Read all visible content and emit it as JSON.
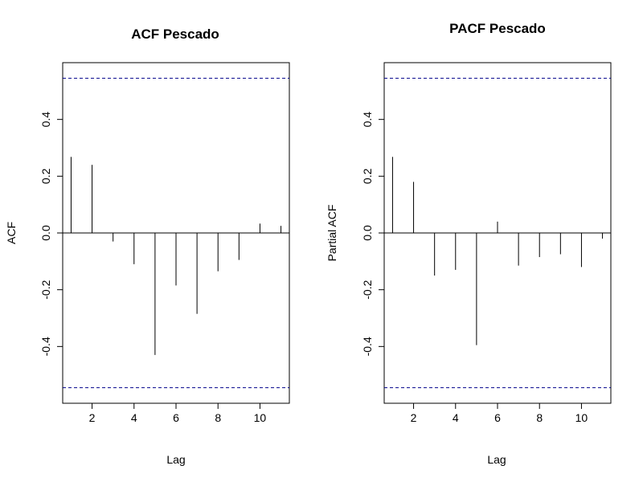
{
  "chart_data": [
    {
      "type": "bar",
      "title": "ACF Pescado",
      "xlabel": "Lag",
      "ylabel": "ACF",
      "x": [
        1,
        2,
        3,
        4,
        5,
        6,
        7,
        8,
        9,
        10,
        11
      ],
      "values": [
        0.268,
        0.24,
        -0.03,
        -0.11,
        -0.43,
        -0.185,
        -0.285,
        -0.135,
        -0.095,
        0.033,
        0.025
      ],
      "xlim": [
        0.6,
        11.4
      ],
      "ylim": [
        -0.6,
        0.6
      ],
      "xticks": [
        2,
        4,
        6,
        8,
        10
      ],
      "yticks": [
        -0.4,
        -0.2,
        0.0,
        0.2,
        0.4
      ],
      "xtick_labels": [
        "2",
        "4",
        "6",
        "8",
        "10"
      ],
      "ytick_labels": [
        "-0.4",
        "-0.2",
        "0.0",
        "0.2",
        "0.4"
      ],
      "confidence_bounds": [
        0.545,
        -0.545
      ],
      "bound_color": "#00008B",
      "grid": false
    },
    {
      "type": "bar",
      "title": "PACF Pescado",
      "xlabel": "Lag",
      "ylabel": "Partial ACF",
      "x": [
        1,
        2,
        3,
        4,
        5,
        6,
        7,
        8,
        9,
        10,
        11
      ],
      "values": [
        0.268,
        0.18,
        -0.15,
        -0.13,
        -0.395,
        0.04,
        -0.115,
        -0.085,
        -0.075,
        -0.12,
        -0.02
      ],
      "xlim": [
        0.6,
        11.4
      ],
      "ylim": [
        -0.6,
        0.6
      ],
      "xticks": [
        2,
        4,
        6,
        8,
        10
      ],
      "yticks": [
        -0.4,
        -0.2,
        0.0,
        0.2,
        0.4
      ],
      "xtick_labels": [
        "2",
        "4",
        "6",
        "8",
        "10"
      ],
      "ytick_labels": [
        "-0.4",
        "-0.2",
        "0.0",
        "0.2",
        "0.4"
      ],
      "confidence_bounds": [
        0.545,
        -0.545
      ],
      "bound_color": "#00008B",
      "grid": false
    }
  ]
}
